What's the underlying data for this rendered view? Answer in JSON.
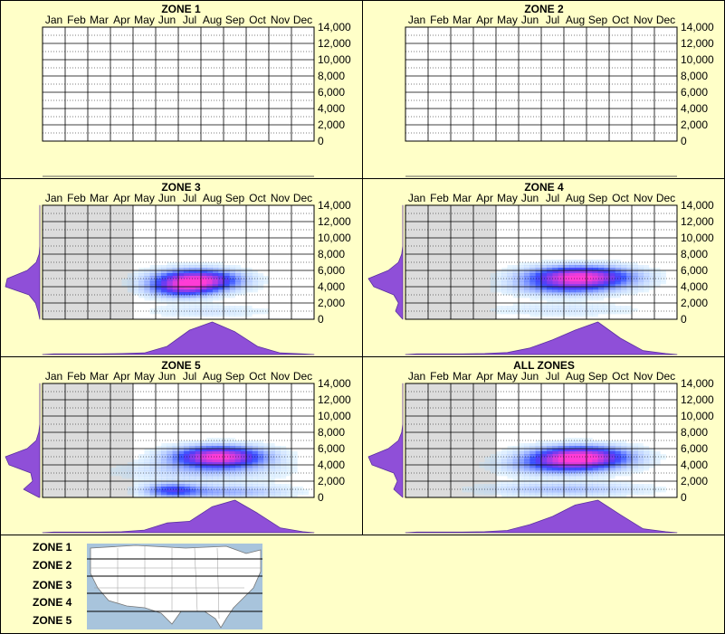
{
  "colors": {
    "background": "#ffffc8",
    "panel_border": "#000000",
    "grid": "#000000",
    "unavailable_months": "#dcdcdc",
    "marginal_fill": "#8f4fd8",
    "marginal_stroke": "#5a2fa0",
    "heat_low": "#c8f4ff",
    "heat_mid": "#1f3cff",
    "heat_high": "#ff3cd6"
  },
  "months": [
    "Jan",
    "Feb",
    "Mar",
    "Apr",
    "May",
    "Jun",
    "Jul",
    "Aug",
    "Sep",
    "Oct",
    "Nov",
    "Dec"
  ],
  "y_ticks": [
    "14,000",
    "12,000",
    "10,000",
    "8,000",
    "6,000",
    "4,000",
    "2,000",
    "0"
  ],
  "legend": {
    "zones": [
      "ZONE 1",
      "ZONE 2",
      "ZONE 3",
      "ZONE 4",
      "ZONE 5"
    ],
    "map_icon": "us-map-icon"
  },
  "chart_data": [
    {
      "type": "heatmap",
      "title": "ZONE 1",
      "x_categories": [
        "Jan",
        "Feb",
        "Mar",
        "Apr",
        "May",
        "Jun",
        "Jul",
        "Aug",
        "Sep",
        "Oct",
        "Nov",
        "Dec"
      ],
      "ylim": [
        0,
        14000
      ],
      "grid": true,
      "greyed_months": [],
      "blobs": [],
      "month_marginal": [],
      "value_marginal": []
    },
    {
      "type": "heatmap",
      "title": "ZONE 2",
      "x_categories": [
        "Jan",
        "Feb",
        "Mar",
        "Apr",
        "May",
        "Jun",
        "Jul",
        "Aug",
        "Sep",
        "Oct",
        "Nov",
        "Dec"
      ],
      "ylim": [
        0,
        14000
      ],
      "grid": true,
      "greyed_months": [],
      "blobs": [],
      "month_marginal": [],
      "value_marginal": []
    },
    {
      "type": "heatmap",
      "title": "ZONE 3",
      "x_categories": [
        "Jan",
        "Feb",
        "Mar",
        "Apr",
        "May",
        "Jun",
        "Jul",
        "Aug",
        "Sep",
        "Oct",
        "Nov",
        "Dec"
      ],
      "ylim": [
        0,
        14000
      ],
      "grid": true,
      "greyed_months": [
        "Jan",
        "Feb",
        "Mar",
        "Apr"
      ],
      "blobs": [
        {
          "month": 7.3,
          "value": 4800,
          "sx": 1.3,
          "sy": 900,
          "amp": 1.0
        },
        {
          "month": 6.6,
          "value": 3600,
          "sx": 1.0,
          "sy": 700,
          "amp": 0.45
        },
        {
          "month": 7.8,
          "value": 1000,
          "sx": 2.0,
          "sy": 600,
          "amp": 0.12
        }
      ],
      "month_marginal": [
        0.02,
        0.02,
        0.02,
        0.03,
        0.05,
        0.25,
        0.75,
        1.0,
        0.7,
        0.25,
        0.05,
        0.02
      ],
      "value_marginal": [
        0.0,
        0.05,
        0.12,
        0.3,
        0.95,
        0.9,
        0.35,
        0.1,
        0.02,
        0.0,
        0.0,
        0.0,
        0.0,
        0.0,
        0.0
      ]
    },
    {
      "type": "heatmap",
      "title": "ZONE 4",
      "x_categories": [
        "Jan",
        "Feb",
        "Mar",
        "Apr",
        "May",
        "Jun",
        "Jul",
        "Aug",
        "Sep",
        "Oct",
        "Nov",
        "Dec"
      ],
      "ylim": [
        0,
        14000
      ],
      "grid": true,
      "greyed_months": [
        "Jan",
        "Feb",
        "Mar",
        "Apr"
      ],
      "blobs": [
        {
          "month": 8.2,
          "value": 5200,
          "sx": 1.6,
          "sy": 900,
          "amp": 1.0
        },
        {
          "month": 7.5,
          "value": 3800,
          "sx": 1.6,
          "sy": 700,
          "amp": 0.3
        },
        {
          "month": 7.5,
          "value": 1200,
          "sx": 2.5,
          "sy": 600,
          "amp": 0.12
        }
      ],
      "month_marginal": [
        0.02,
        0.02,
        0.02,
        0.03,
        0.06,
        0.2,
        0.45,
        0.75,
        1.0,
        0.5,
        0.12,
        0.03
      ],
      "value_marginal": [
        0.0,
        0.2,
        0.12,
        0.25,
        0.8,
        0.95,
        0.4,
        0.12,
        0.03,
        0.0,
        0.0,
        0.0,
        0.0,
        0.0,
        0.0
      ]
    },
    {
      "type": "heatmap",
      "title": "ZONE 5",
      "x_categories": [
        "Jan",
        "Feb",
        "Mar",
        "Apr",
        "May",
        "Jun",
        "Jul",
        "Aug",
        "Sep",
        "Oct",
        "Nov",
        "Dec"
      ],
      "ylim": [
        0,
        14000
      ],
      "grid": true,
      "greyed_months": [
        "Jan",
        "Feb",
        "Mar",
        "Apr"
      ],
      "blobs": [
        {
          "month": 8.3,
          "value": 5000,
          "sx": 1.4,
          "sy": 900,
          "amp": 1.0
        },
        {
          "month": 6.2,
          "value": 900,
          "sx": 0.8,
          "sy": 600,
          "amp": 0.45
        },
        {
          "month": 8.5,
          "value": 700,
          "sx": 2.0,
          "sy": 600,
          "amp": 0.3
        },
        {
          "month": 7.5,
          "value": 3200,
          "sx": 2.5,
          "sy": 900,
          "amp": 0.18
        }
      ],
      "month_marginal": [
        0.02,
        0.02,
        0.02,
        0.03,
        0.08,
        0.3,
        0.35,
        0.8,
        1.0,
        0.6,
        0.15,
        0.03
      ],
      "value_marginal": [
        0.02,
        0.45,
        0.2,
        0.25,
        0.85,
        0.95,
        0.35,
        0.1,
        0.03,
        0.0,
        0.0,
        0.0,
        0.0,
        0.0,
        0.0
      ]
    },
    {
      "type": "heatmap",
      "title": "ALL ZONES",
      "x_categories": [
        "Jan",
        "Feb",
        "Mar",
        "Apr",
        "May",
        "Jun",
        "Jul",
        "Aug",
        "Sep",
        "Oct",
        "Nov",
        "Dec"
      ],
      "ylim": [
        0,
        14000
      ],
      "grid": true,
      "greyed_months": [
        "Jan",
        "Feb",
        "Mar",
        "Apr"
      ],
      "blobs": [
        {
          "month": 8.2,
          "value": 5000,
          "sx": 1.5,
          "sy": 900,
          "amp": 1.0
        },
        {
          "month": 7.3,
          "value": 3800,
          "sx": 1.7,
          "sy": 800,
          "amp": 0.35
        },
        {
          "month": 7.5,
          "value": 1000,
          "sx": 2.5,
          "sy": 600,
          "amp": 0.25
        }
      ],
      "month_marginal": [
        0.02,
        0.02,
        0.02,
        0.03,
        0.07,
        0.25,
        0.5,
        0.85,
        1.0,
        0.55,
        0.12,
        0.03
      ],
      "value_marginal": [
        0.0,
        0.25,
        0.15,
        0.25,
        0.85,
        0.95,
        0.4,
        0.12,
        0.03,
        0.0,
        0.0,
        0.0,
        0.0,
        0.0,
        0.0
      ]
    }
  ]
}
